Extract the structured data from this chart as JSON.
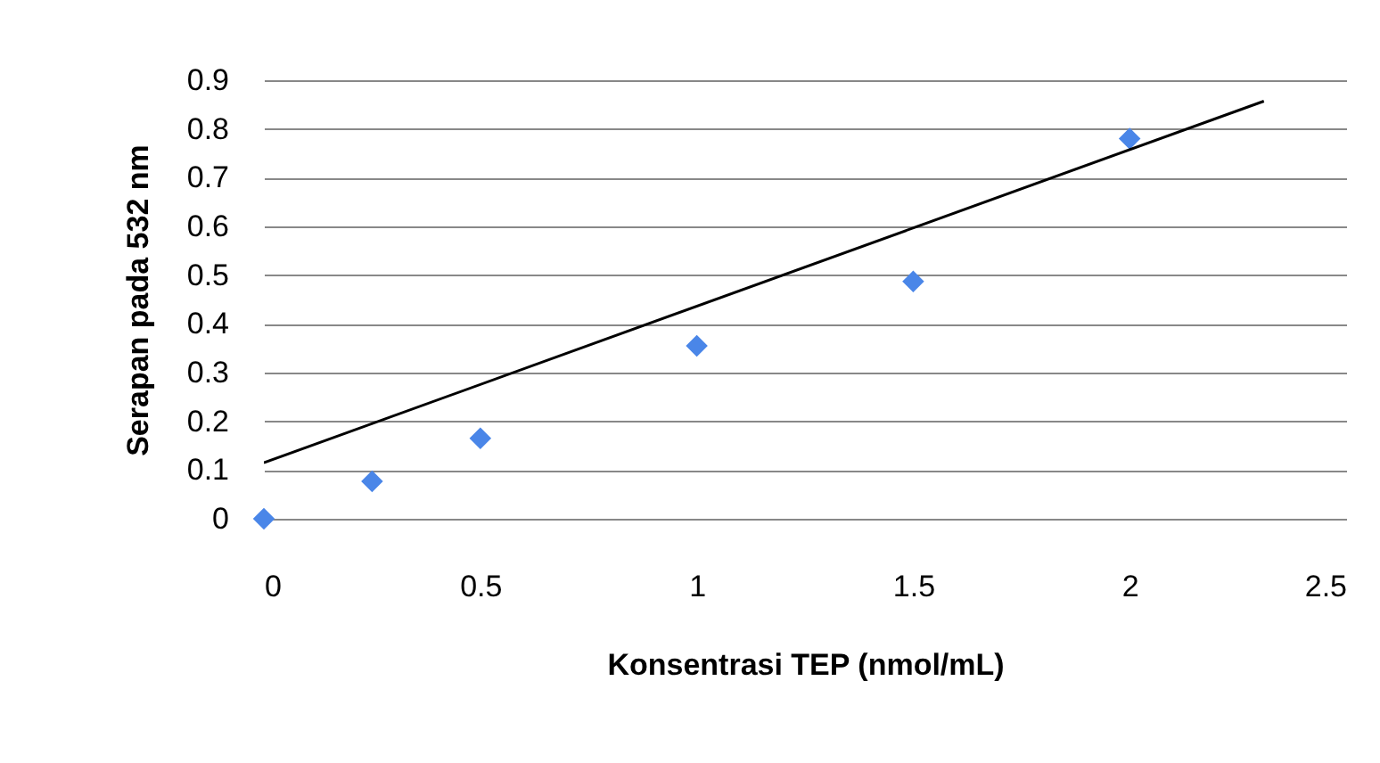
{
  "chart_data": {
    "type": "scatter",
    "xlabel": "Konsentrasi TEP (nmol/mL)",
    "ylabel": "Serapan pada 532 nm",
    "xlim": [
      0,
      2.5
    ],
    "xticks": [
      0,
      0.5,
      1,
      1.5,
      2,
      2.5
    ],
    "ylim": [
      0,
      0.9
    ],
    "yticks": [
      0,
      0.1,
      0.2,
      0.3,
      0.4,
      0.5,
      0.6,
      0.7,
      0.8,
      0.9
    ],
    "grid": "y",
    "series": [
      {
        "marker": "diamond",
        "color": "#4a86e8",
        "x": [
          0,
          0.25,
          0.5,
          1.0,
          1.5,
          2.0
        ],
        "values": [
          0,
          0.077,
          0.165,
          0.355,
          0.487,
          0.78
        ]
      },
      {
        "type": "line",
        "color": "#000000",
        "x": [
          0,
          2.31
        ],
        "values": [
          0.115,
          0.857
        ]
      }
    ]
  }
}
